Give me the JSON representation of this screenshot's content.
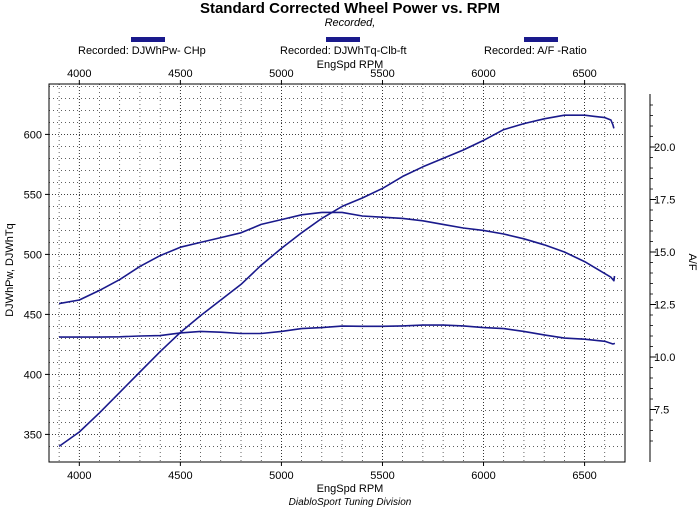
{
  "chart_data": {
    "type": "line",
    "title": "Standard Corrected Wheel Power vs. RPM",
    "subtitle": "Recorded,",
    "footer": "DiabloSport Tuning Division",
    "xlabel": "EngSpd  RPM",
    "xlabel_top": "EngSpd  RPM",
    "ylabel": "DJWhPw, DJWhTq",
    "ylabel_right": "A/F",
    "xlim": [
      3850,
      6700
    ],
    "ylim": [
      327,
      642
    ],
    "ylim_right": [
      5.0,
      23.0
    ],
    "x_ticks": [
      "4000",
      "4500",
      "5000",
      "5500",
      "6000",
      "6500"
    ],
    "y_ticks": [
      "350",
      "400",
      "450",
      "500",
      "550",
      "600"
    ],
    "y_right_ticks": [
      "7.5",
      "10.0",
      "12.5",
      "15.0",
      "17.5",
      "20.0"
    ],
    "grid": true,
    "legend_position": "top",
    "line_color": "#1a1a8c",
    "series": [
      {
        "name": "Recorded: DJWhPw- CHp",
        "axis": "left",
        "x": [
          3900,
          4000,
          4100,
          4200,
          4300,
          4400,
          4500,
          4600,
          4700,
          4800,
          4900,
          5000,
          5100,
          5200,
          5300,
          5400,
          5500,
          5600,
          5700,
          5800,
          5900,
          6000,
          6100,
          6200,
          6300,
          6400,
          6500,
          6550,
          6600,
          6630,
          6640,
          6645
        ],
        "values": [
          340,
          352,
          368,
          385,
          402,
          419,
          435,
          449,
          462,
          475,
          491,
          505,
          518,
          530,
          540,
          547,
          555,
          565,
          573,
          580,
          587,
          595,
          604,
          609,
          613,
          616,
          616,
          615,
          614,
          612,
          608,
          605
        ]
      },
      {
        "name": "Recorded: DJWhTq-Clb-ft",
        "axis": "left",
        "x": [
          3900,
          4000,
          4100,
          4200,
          4300,
          4400,
          4500,
          4600,
          4700,
          4800,
          4900,
          5000,
          5100,
          5200,
          5300,
          5400,
          5500,
          5600,
          5700,
          5800,
          5900,
          6000,
          6100,
          6200,
          6300,
          6400,
          6500,
          6550,
          6600,
          6630,
          6645,
          6648
        ],
        "values": [
          459,
          462,
          470,
          479,
          490,
          499,
          506,
          510,
          514,
          518,
          525,
          529,
          533,
          535,
          535,
          532,
          531,
          530,
          528,
          525,
          522,
          520,
          517,
          513,
          508,
          502,
          494,
          489,
          484,
          481,
          478,
          482
        ]
      },
      {
        "name": "Recorded:  A/F  -Ratio",
        "axis": "right",
        "x": [
          3900,
          4000,
          4100,
          4200,
          4300,
          4400,
          4500,
          4600,
          4700,
          4800,
          4900,
          5000,
          5100,
          5200,
          5300,
          5400,
          5500,
          5600,
          5700,
          5800,
          5900,
          6000,
          6100,
          6200,
          6300,
          6400,
          6500,
          6600,
          6640,
          6650
        ],
        "values": [
          10.95,
          10.95,
          10.95,
          10.96,
          11.0,
          11.02,
          11.15,
          11.22,
          11.18,
          11.12,
          11.12,
          11.22,
          11.35,
          11.4,
          11.47,
          11.46,
          11.46,
          11.48,
          11.52,
          11.52,
          11.48,
          11.4,
          11.35,
          11.22,
          11.05,
          10.9,
          10.85,
          10.75,
          10.62,
          10.65
        ]
      }
    ]
  }
}
